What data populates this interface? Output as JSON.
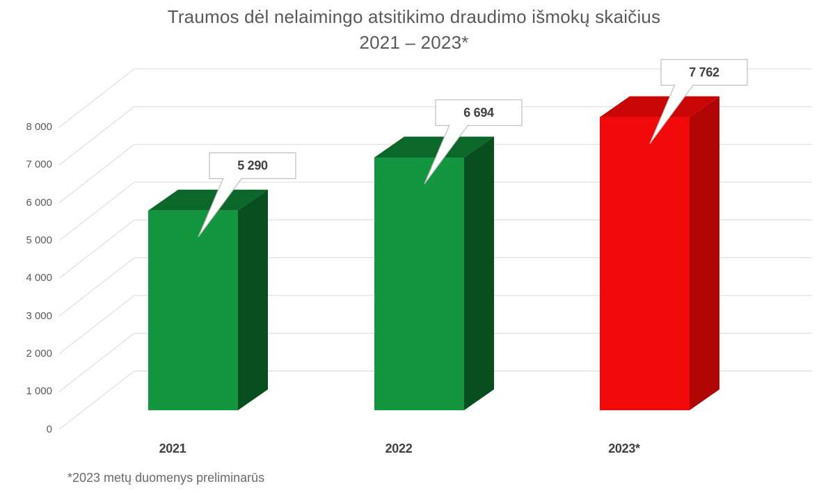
{
  "chart_data": {
    "type": "bar",
    "projection": "3d",
    "title": "Traumos dėl nelaimingo atsitikimo draudimo išmokų skaičius 2021 – 2023*",
    "title_line1": "Traumos dėl nelaimingo atsitikimo draudimo išmokų skaičius",
    "title_line2": "2021 – 2023*",
    "footnote": "*2023 metų duomenys preliminarūs",
    "categories": [
      "2021",
      "2022",
      "2023*"
    ],
    "values": [
      5290,
      6694,
      7762
    ],
    "value_labels": [
      "5 290",
      "6 694",
      "7 762"
    ],
    "xlabel": "",
    "ylabel": "",
    "ylim": [
      0,
      8000
    ],
    "ytick_step": 1000,
    "yticks": [
      0,
      1000,
      2000,
      3000,
      4000,
      5000,
      6000,
      7000,
      8000
    ],
    "ytick_labels": [
      "0",
      "1 000",
      "2 000",
      "3 000",
      "4 000",
      "5 000",
      "6 000",
      "7 000",
      "8 000"
    ],
    "grid": true,
    "legend": "none",
    "bar_colors": [
      {
        "front": "#149540",
        "top": "#0b672a",
        "side": "#084f20"
      },
      {
        "front": "#149540",
        "top": "#0b672a",
        "side": "#084f20"
      },
      {
        "front": "#f20a0a",
        "top": "#ca0505",
        "side": "#b00606"
      }
    ],
    "grid_color": "#d9d9d9",
    "callout_fill": "#ffffff",
    "callout_border": "#bfbfbf",
    "title_color": "#595959",
    "axis_text_color": "#595959",
    "data_label_color": "#404040",
    "background_color": "#ffffff"
  }
}
